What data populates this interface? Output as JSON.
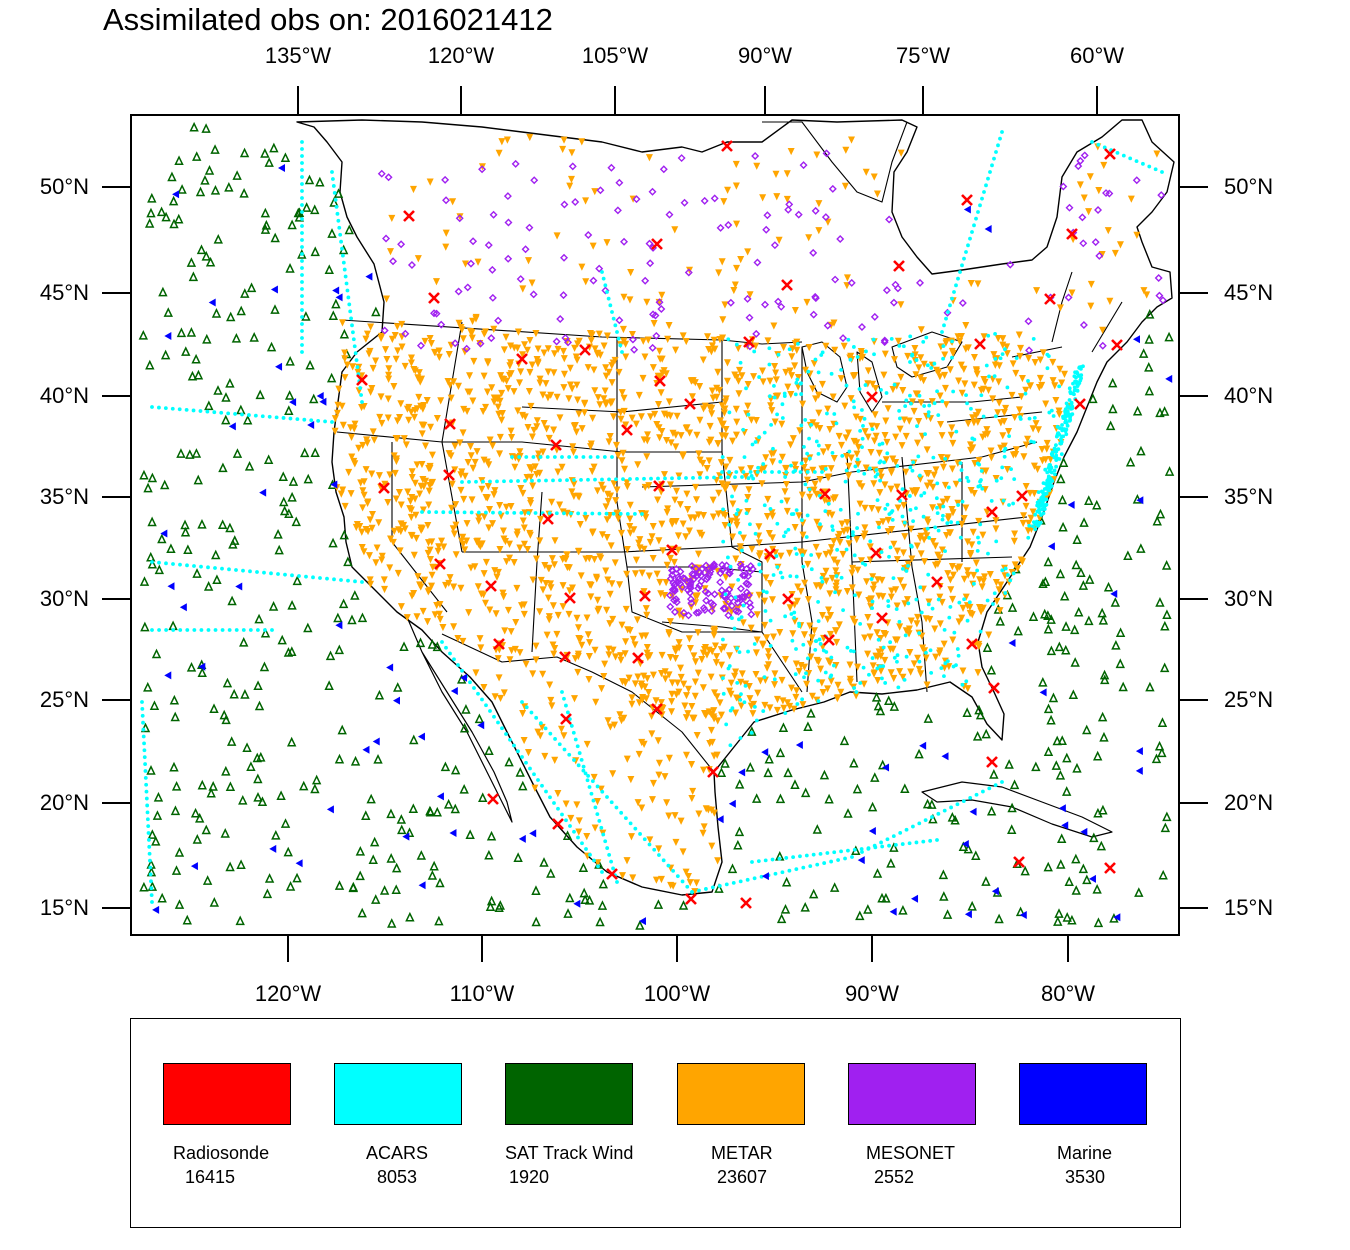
{
  "title": "Assimilated obs on: 2016021412",
  "top_ticks": [
    "135°W",
    "120°W",
    "105°W",
    "90°W",
    "75°W",
    "60°W"
  ],
  "bottom_ticks": [
    "120°W",
    "110°W",
    "100°W",
    "90°W",
    "80°W"
  ],
  "lat_ticks": [
    "50°N",
    "45°N",
    "40°N",
    "35°N",
    "30°N",
    "25°N",
    "20°N",
    "15°N"
  ],
  "legend": [
    {
      "name": "Radiosonde",
      "count": "16415",
      "color": "#ff0000",
      "marker": "x"
    },
    {
      "name": "ACARS",
      "count": "8053",
      "color": "#00ffff",
      "marker": "dot"
    },
    {
      "name": "SAT Track Wind",
      "count": "1920",
      "color": "#006400",
      "marker": "triangle-up"
    },
    {
      "name": "METAR",
      "count": "23607",
      "color": "#ffa500",
      "marker": "triangle-down"
    },
    {
      "name": "MESONET",
      "count": "2552",
      "color": "#a020f0",
      "marker": "diamond"
    },
    {
      "name": "Marine",
      "count": "3530",
      "color": "#0000ff",
      "marker": "triangle-left"
    }
  ]
}
